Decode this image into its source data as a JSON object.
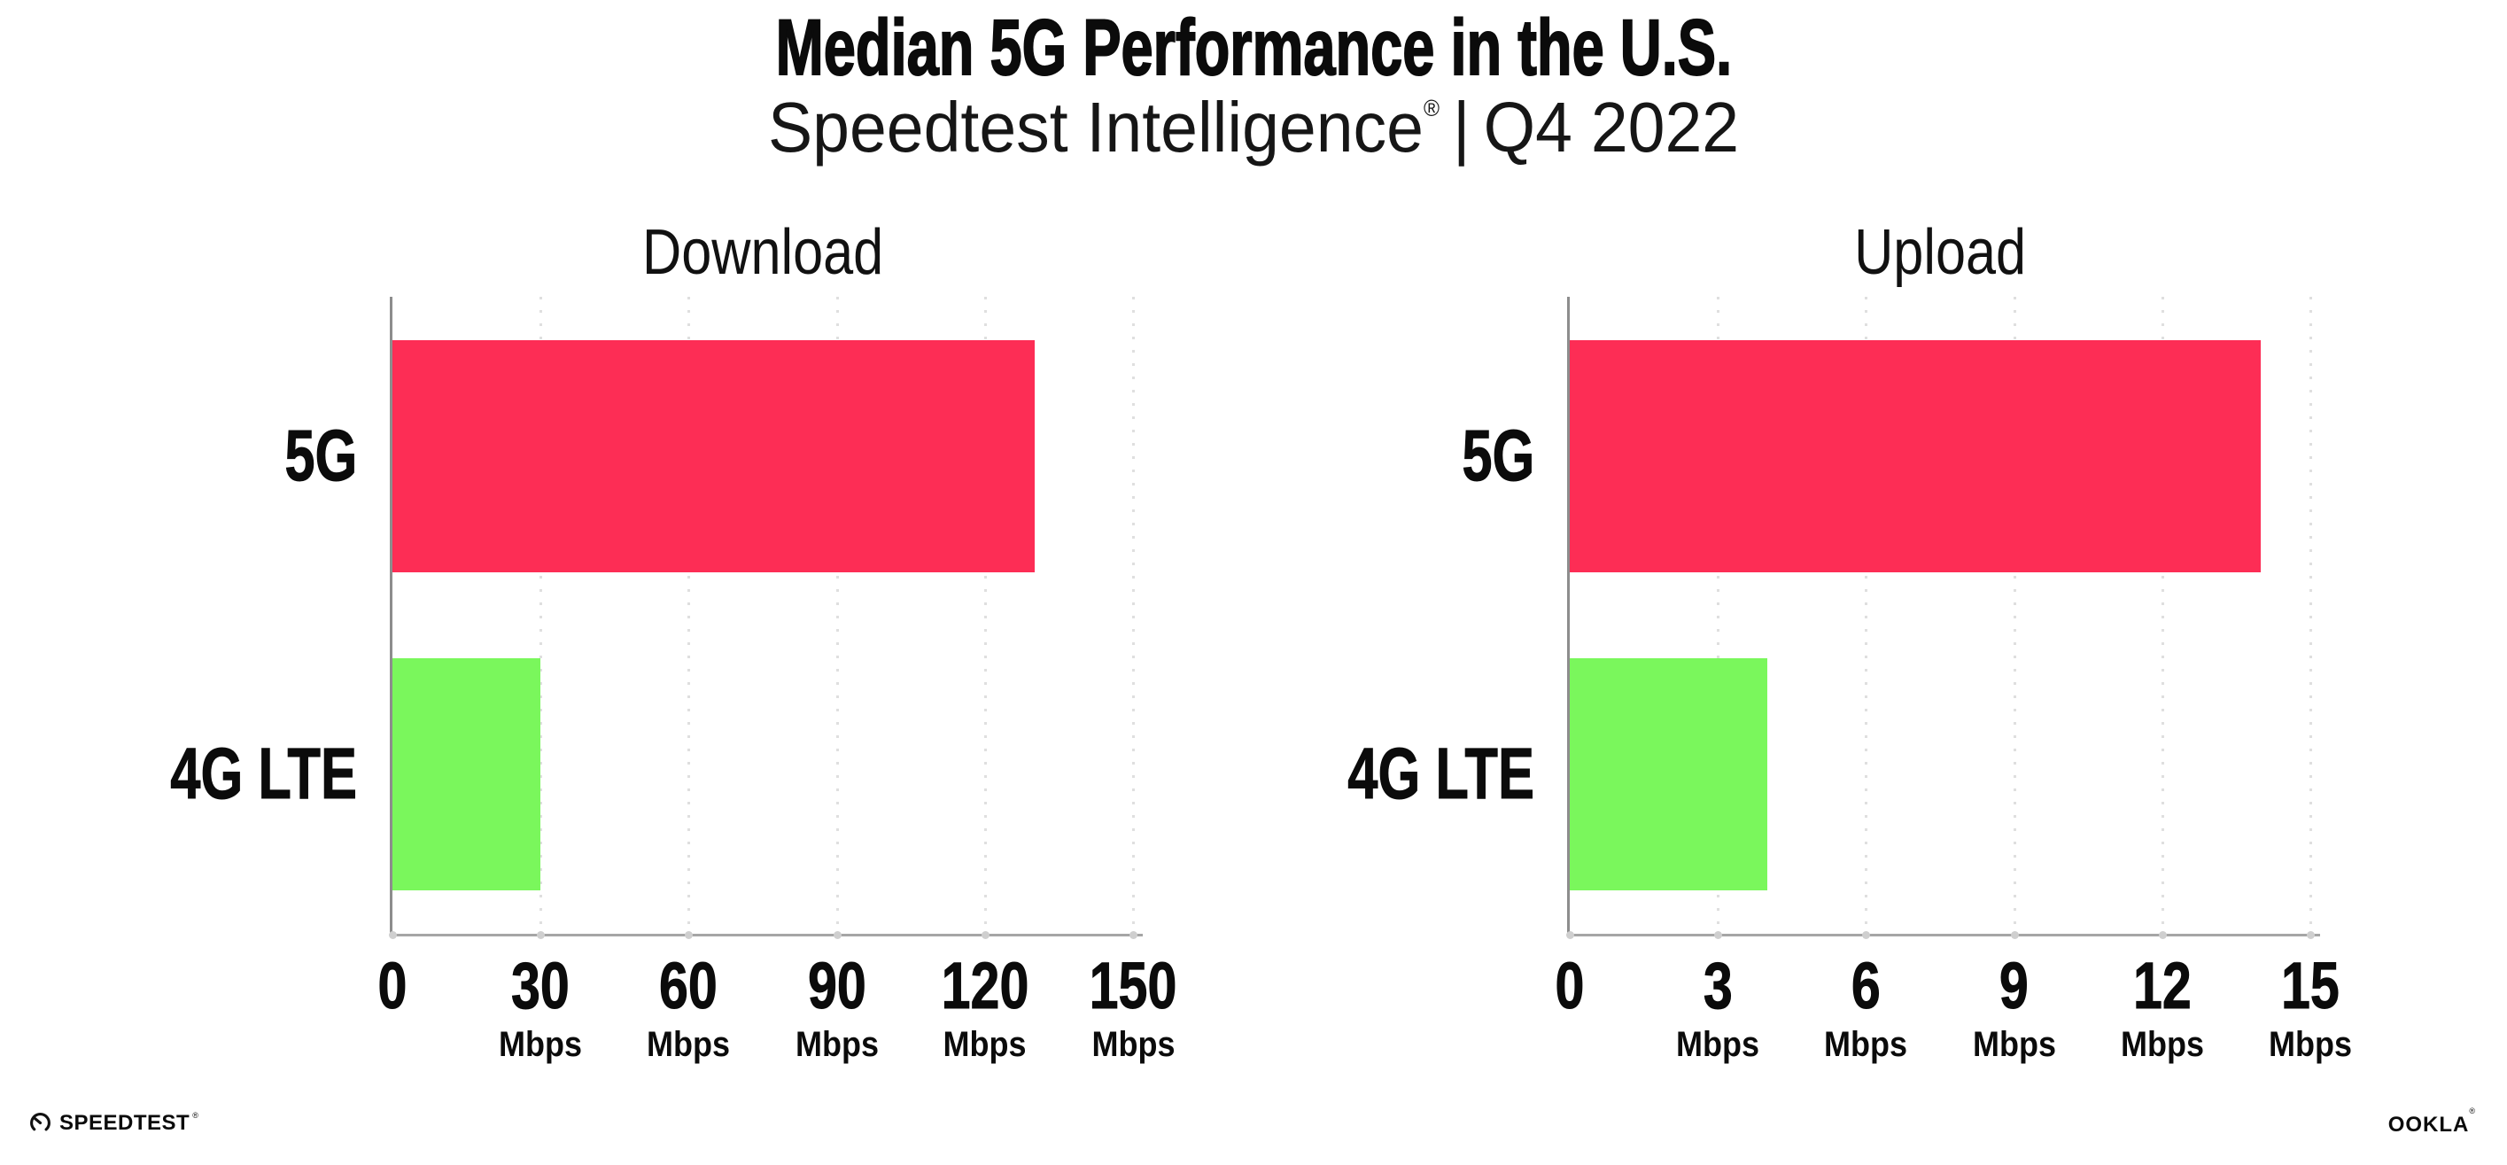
{
  "page": {
    "background": "#ffffff"
  },
  "header": {
    "title": "Median 5G Performance in the U.S.",
    "subtitle_brand": "Speedtest Intelligence",
    "subtitle_registered_mark": "®",
    "subtitle_separator": "|",
    "subtitle_period": "Q4 2022"
  },
  "chart_data": [
    {
      "type": "bar",
      "orientation": "horizontal",
      "title": "Download",
      "categories": [
        "5G",
        "4G LTE"
      ],
      "values": [
        130,
        30
      ],
      "unit": "Mbps",
      "xlim": [
        0,
        150
      ],
      "xticks": [
        0,
        30,
        60,
        90,
        120,
        150
      ],
      "xtick_unit_label": "Mbps",
      "bar_colors": [
        "#FD2D55",
        "#7AF75C"
      ],
      "grid": "dotted vertical gridlines at each tick",
      "legend": "none"
    },
    {
      "type": "bar",
      "orientation": "horizontal",
      "title": "Upload",
      "categories": [
        "5G",
        "4G LTE"
      ],
      "values": [
        14,
        4
      ],
      "unit": "Mbps",
      "xlim": [
        0,
        15
      ],
      "xticks": [
        0,
        3,
        6,
        9,
        12,
        15
      ],
      "xtick_unit_label": "Mbps",
      "bar_colors": [
        "#FD2D55",
        "#7AF75C"
      ],
      "grid": "dotted vertical gridlines at each tick",
      "legend": "none"
    }
  ],
  "footer": {
    "speedtest_wordmark": "SPEEDTEST",
    "speedtest_mark": "®",
    "ookla_wordmark": "OOKLA",
    "ookla_mark": "®"
  },
  "colors": {
    "bar_5g": "#FD2D55",
    "bar_4g_lte": "#7AF75C",
    "axis_vertical": "#8d8d8d",
    "axis_horizontal": "#a6a6a6",
    "gridline": "#dfdfdf",
    "tick_dot": "#cfcfcf",
    "text": "#0b0b0b"
  }
}
